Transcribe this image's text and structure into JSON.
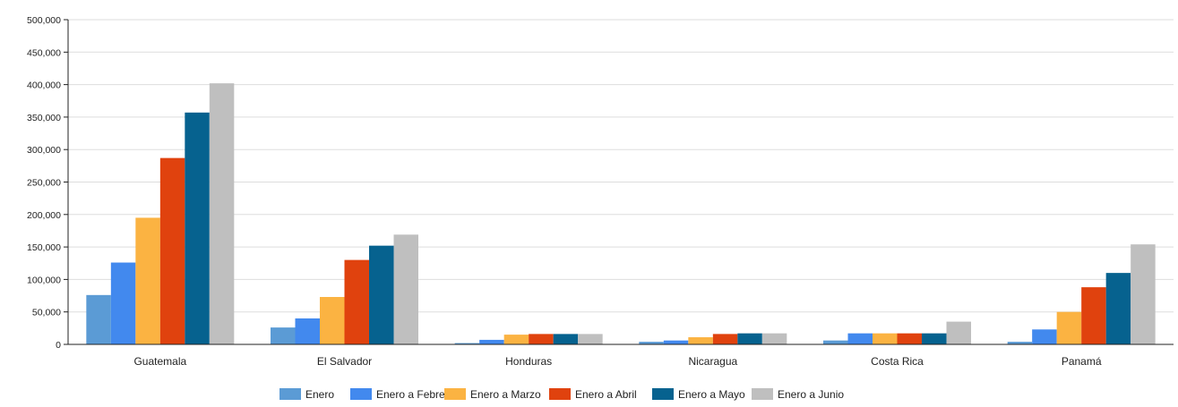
{
  "chart_data": {
    "type": "bar",
    "categories": [
      "Guatemala",
      "El Salvador",
      "Honduras",
      "Nicaragua",
      "Costa Rica",
      "Panamá"
    ],
    "series": [
      {
        "name": "Enero",
        "color": "#5b9bd5",
        "values": [
          76000,
          26000,
          2000,
          4000,
          6000,
          4000
        ]
      },
      {
        "name": "Enero a Febrero",
        "color": "#4289ee",
        "values": [
          126000,
          40000,
          7000,
          6000,
          17000,
          23000
        ]
      },
      {
        "name": "Enero a Marzo",
        "color": "#fbb342",
        "values": [
          195000,
          73000,
          15000,
          11000,
          17000,
          50000
        ]
      },
      {
        "name": "Enero a Abril",
        "color": "#e0420e",
        "values": [
          287000,
          130000,
          16000,
          16000,
          17000,
          88000
        ]
      },
      {
        "name": "Enero a Mayo",
        "color": "#06628f",
        "values": [
          357000,
          152000,
          16000,
          17000,
          17000,
          110000
        ]
      },
      {
        "name": "Enero a Junio",
        "color": "#bfbfbf",
        "values": [
          402000,
          169000,
          16000,
          17000,
          35000,
          154000
        ]
      }
    ],
    "y_ticks": [
      "0",
      "50,000",
      "100,000",
      "150,000",
      "200,000",
      "250,000",
      "300,000",
      "350,000",
      "400,000",
      "450,000",
      "500,000"
    ],
    "ylim": [
      0,
      500000
    ],
    "grid": true,
    "legend_position": "bottom-center",
    "title": "",
    "xlabel": "",
    "ylabel": ""
  }
}
